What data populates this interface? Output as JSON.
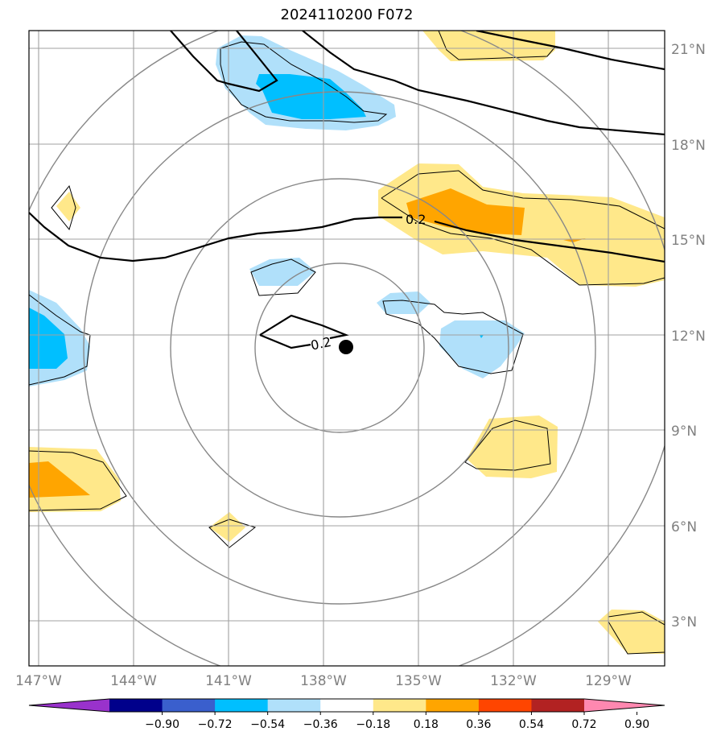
{
  "title": "2024110200 F072",
  "lat_labels": [
    "21°N",
    "18°N",
    "15°N",
    "12°N",
    "9°N",
    "6°N",
    "3°N"
  ],
  "lon_labels": [
    "147°W",
    "144°W",
    "141°W",
    "138°W",
    "135°W",
    "132°W",
    "129°W"
  ],
  "contour_labels": [
    "0.2",
    "0.2"
  ],
  "colorbar": {
    "ticks": [
      "−0.90",
      "−0.72",
      "−0.54",
      "−0.36",
      "−0.18",
      "0.18",
      "0.36",
      "0.54",
      "0.72",
      "0.90"
    ],
    "colors": [
      "#9932cc",
      "#00008b",
      "#3a5fcd",
      "#00bfff",
      "#b0e0fa",
      "#ffffff",
      "#ffe88a",
      "#ffa500",
      "#ff4500",
      "#b22222",
      "#ff88b0"
    ]
  },
  "map": {
    "extent_lon": [
      -147.3,
      -127.2
    ],
    "extent_lat": [
      1.7,
      21.7
    ],
    "center_marker": {
      "lon": -137.3,
      "lat": 11.6
    }
  }
}
